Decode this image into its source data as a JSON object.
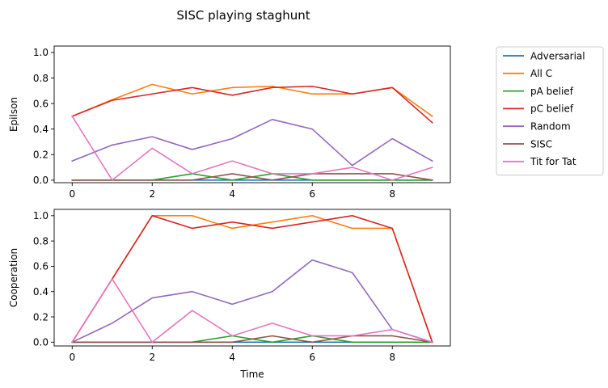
{
  "title": "SISC playing staghunt",
  "legend": {
    "placement": "outside-right",
    "entries": [
      {
        "name": "Adversarial",
        "color": "#1f77b4"
      },
      {
        "name": "All C",
        "color": "#ff7f0e"
      },
      {
        "name": "pA belief",
        "color": "#2ca02c"
      },
      {
        "name": "pC belief",
        "color": "#d62728"
      },
      {
        "name": "Random",
        "color": "#9467bd"
      },
      {
        "name": "SISC",
        "color": "#8c564b"
      },
      {
        "name": "Tit for Tat",
        "color": "#e377c2"
      }
    ]
  },
  "chart_data": [
    {
      "type": "line",
      "ylabel": "Epilson",
      "xlabel": "",
      "xlim": [
        -0.45,
        9.45
      ],
      "ylim": [
        -0.02,
        1.05
      ],
      "xticks": [
        0,
        2,
        4,
        6,
        8
      ],
      "yticks": [
        0.0,
        0.2,
        0.4,
        0.6,
        0.8,
        1.0
      ],
      "x": [
        0,
        1,
        2,
        3,
        4,
        5,
        6,
        7,
        8,
        9
      ],
      "grid": false,
      "series": [
        {
          "name": "Adversarial",
          "values": [
            0,
            0,
            0,
            0,
            0,
            0,
            0,
            0,
            0,
            0
          ]
        },
        {
          "name": "All C",
          "values": [
            0.5,
            0.63,
            0.75,
            0.675,
            0.725,
            0.735,
            0.675,
            0.675,
            0.725,
            0.5
          ]
        },
        {
          "name": "pA belief",
          "values": [
            0,
            0,
            0,
            0.05,
            0,
            0.05,
            0,
            0,
            0,
            0
          ]
        },
        {
          "name": "pC belief",
          "values": [
            0.5,
            0.625,
            0.675,
            0.725,
            0.665,
            0.725,
            0.735,
            0.675,
            0.725,
            0.45
          ]
        },
        {
          "name": "Random",
          "values": [
            0.15,
            0.275,
            0.34,
            0.24,
            0.325,
            0.475,
            0.4,
            0.115,
            0.325,
            0.15
          ]
        },
        {
          "name": "SISC",
          "values": [
            0,
            0,
            0,
            0,
            0.05,
            0,
            0.05,
            0.05,
            0.05,
            0
          ]
        },
        {
          "name": "Tit for Tat",
          "values": [
            0.5,
            0,
            0.25,
            0.05,
            0.15,
            0.05,
            0.05,
            0.1,
            0,
            0.1
          ]
        }
      ]
    },
    {
      "type": "line",
      "ylabel": "Cooperation",
      "xlabel": "Time",
      "xlim": [
        -0.45,
        9.45
      ],
      "ylim": [
        -0.03,
        1.05
      ],
      "xticks": [
        0,
        2,
        4,
        6,
        8
      ],
      "yticks": [
        0.0,
        0.2,
        0.4,
        0.6,
        0.8,
        1.0
      ],
      "x": [
        0,
        1,
        2,
        3,
        4,
        5,
        6,
        7,
        8,
        9
      ],
      "grid": false,
      "series": [
        {
          "name": "Adversarial",
          "values": [
            0,
            0,
            0,
            0,
            0,
            0,
            0,
            0,
            0,
            0
          ]
        },
        {
          "name": "All C",
          "values": [
            0,
            0.5,
            1.0,
            1.0,
            0.9,
            0.95,
            1.0,
            0.9,
            0.9,
            0
          ]
        },
        {
          "name": "pA belief",
          "values": [
            0,
            0,
            0,
            0,
            0.05,
            0,
            0.05,
            0,
            0,
            0
          ]
        },
        {
          "name": "pC belief",
          "values": [
            0,
            0.5,
            1.0,
            0.9,
            0.95,
            0.9,
            0.95,
            1.0,
            0.9,
            0
          ]
        },
        {
          "name": "Random",
          "values": [
            0,
            0.15,
            0.35,
            0.4,
            0.3,
            0.4,
            0.65,
            0.55,
            0.1,
            0
          ]
        },
        {
          "name": "SISC",
          "values": [
            0,
            0,
            0,
            0,
            0,
            0.05,
            0,
            0.05,
            0.05,
            0
          ]
        },
        {
          "name": "Tit for Tat",
          "values": [
            0,
            0.5,
            0,
            0.25,
            0.05,
            0.15,
            0.05,
            0.05,
            0.1,
            0
          ]
        }
      ]
    }
  ]
}
